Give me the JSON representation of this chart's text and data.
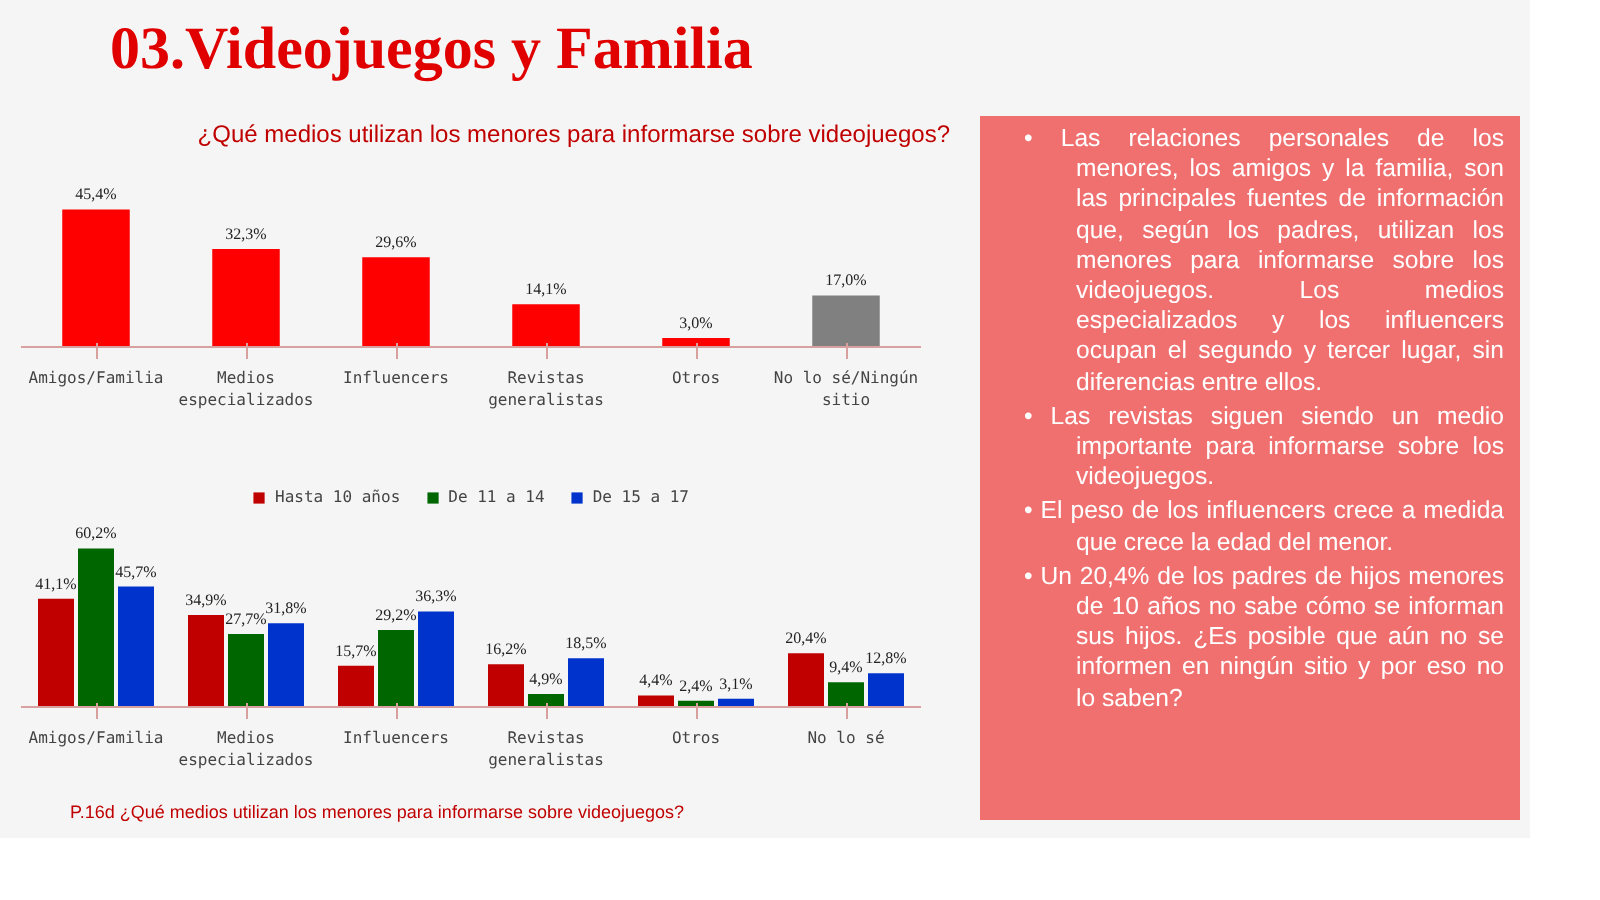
{
  "chart_data": [
    {
      "type": "bar",
      "title": "03.Videojuegos y Familia",
      "subtitle": "¿Qué medios utilizan los menores para informarse sobre videojuegos?",
      "categories": [
        "Amigos/Familia",
        "Medios especializados",
        "Influencers",
        "Revistas generalistas",
        "Otros",
        "No lo sé/Ningún sitio"
      ],
      "values": [
        45.4,
        32.3,
        29.6,
        14.1,
        3.0,
        17.0
      ],
      "colors": [
        "#ff0000",
        "#ff0000",
        "#ff0000",
        "#ff0000",
        "#ff0000",
        "#808080"
      ],
      "value_labels": [
        "45,4%",
        "32,3%",
        "29,6%",
        "14,1%",
        "3,0%",
        "17,0%"
      ]
    },
    {
      "type": "bar",
      "categories": [
        "Amigos/Familia",
        "Medios especializados",
        "Influencers",
        "Revistas generalistas",
        "Otros",
        "No lo sé"
      ],
      "series": [
        {
          "name": "Hasta 10 años",
          "color": "#c00000",
          "values": [
            41.1,
            34.9,
            15.7,
            16.2,
            4.4,
            20.4
          ],
          "value_labels": [
            "41,1%",
            "34,9%",
            "15,7%",
            "16,2%",
            "4,4%",
            "20,4%"
          ]
        },
        {
          "name": "De 11 a 14",
          "color": "#006600",
          "values": [
            60.2,
            27.7,
            29.2,
            4.9,
            2.4,
            9.4
          ],
          "value_labels": [
            "60,2%",
            "27,7%",
            "29,2%",
            "4,9%",
            "2,4%",
            "9,4%"
          ]
        },
        {
          "name": "De 15 a 17",
          "color": "#0033cc",
          "values": [
            45.7,
            31.8,
            36.3,
            18.5,
            3.1,
            12.8
          ],
          "value_labels": [
            "45,7%",
            "31,8%",
            "36,3%",
            "18,5%",
            "3,1%",
            "12,8%"
          ]
        }
      ],
      "legend": "top",
      "annotations": [
        "P.16d ¿Qué medios utilizan los menores para informarse sobre videojuegos?"
      ]
    },
    {
      "type": "other",
      "annotations": [
        "• Las relaciones personales de los menores, los amigos y la familia, son las principales fuentes de información que, según los padres, utilizan los menores para informarse sobre los videojuegos. Los medios especializados y los influencers ocupan el segundo y tercer lugar, sin diferencias entre ellos.",
        "• Las revistas siguen siendo un medio importante para informarse sobre los videojuegos.",
        "• El peso de los influencers crece a medida que crece la edad del menor.",
        "• Un 20,4% de los padres de hijos menores de 10 años no sabe cómo se informan sus hijos. ¿Es posible que aún no se informen en ningún sitio y por eso no lo saben?"
      ]
    }
  ]
}
